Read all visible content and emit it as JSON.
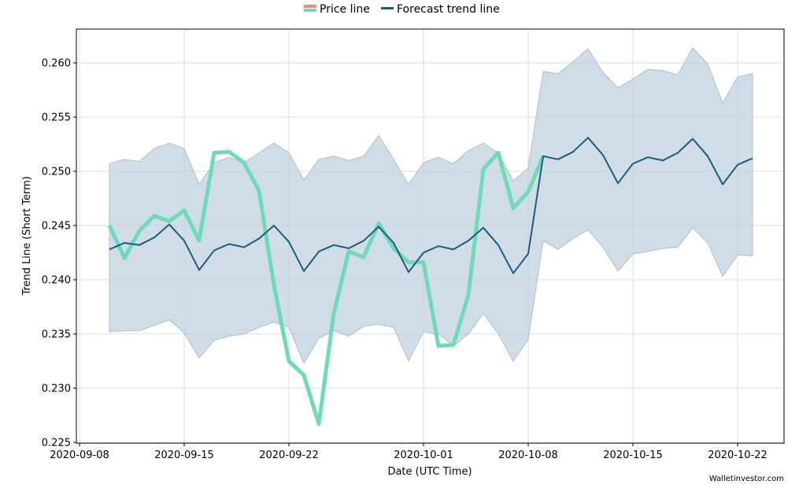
{
  "chart_data": {
    "type": "line",
    "xlabel": "Date (UTC Time)",
    "ylabel": "Trend Line (Short Term)",
    "xlim": [
      "2020-09-08",
      "2020-10-24"
    ],
    "ylim": [
      0.225,
      0.263
    ],
    "grid": true,
    "legend_position": "top-center",
    "x_ticks": [
      "2020-09-08",
      "2020-09-15",
      "2020-09-22",
      "2020-10-01",
      "2020-10-08",
      "2020-10-15",
      "2020-10-22"
    ],
    "y_ticks": [
      "0.225",
      "0.230",
      "0.235",
      "0.240",
      "0.245",
      "0.250",
      "0.255",
      "0.260"
    ],
    "price_line": {
      "name": "Price line",
      "color": "#6ddbb9",
      "legend_color": "#f08a78",
      "x": [
        "2020-09-10",
        "2020-09-11",
        "2020-09-12",
        "2020-09-13",
        "2020-09-14",
        "2020-09-15",
        "2020-09-16",
        "2020-09-17",
        "2020-09-18",
        "2020-09-19",
        "2020-09-20",
        "2020-09-21",
        "2020-09-22",
        "2020-09-23",
        "2020-09-24",
        "2020-09-25",
        "2020-09-26",
        "2020-09-27",
        "2020-09-28",
        "2020-09-29",
        "2020-09-30",
        "2020-10-01",
        "2020-10-02",
        "2020-10-03",
        "2020-10-04",
        "2020-10-05",
        "2020-10-06",
        "2020-10-07",
        "2020-10-08",
        "2020-10-09"
      ],
      "y": [
        0.245,
        0.242,
        0.2445,
        0.2459,
        0.2454,
        0.2464,
        0.2436,
        0.2517,
        0.2518,
        0.2508,
        0.2482,
        0.2395,
        0.2325,
        0.2312,
        0.2267,
        0.2369,
        0.2426,
        0.2421,
        0.2452,
        0.2429,
        0.2416,
        0.2416,
        0.2339,
        0.234,
        0.2386,
        0.2502,
        0.2517,
        0.2466,
        0.2481,
        0.2514
      ]
    },
    "forecast_line": {
      "name": "Forecast trend line",
      "color": "#1a5c80",
      "band_color": "#bccfdb",
      "x": [
        "2020-09-10",
        "2020-09-11",
        "2020-09-12",
        "2020-09-13",
        "2020-09-14",
        "2020-09-15",
        "2020-09-16",
        "2020-09-17",
        "2020-09-18",
        "2020-09-19",
        "2020-09-20",
        "2020-09-21",
        "2020-09-22",
        "2020-09-23",
        "2020-09-24",
        "2020-09-25",
        "2020-09-26",
        "2020-09-27",
        "2020-09-28",
        "2020-09-29",
        "2020-09-30",
        "2020-10-01",
        "2020-10-02",
        "2020-10-03",
        "2020-10-04",
        "2020-10-05",
        "2020-10-06",
        "2020-10-07",
        "2020-10-08",
        "2020-10-09",
        "2020-10-10",
        "2020-10-11",
        "2020-10-12",
        "2020-10-13",
        "2020-10-14",
        "2020-10-15",
        "2020-10-16",
        "2020-10-17",
        "2020-10-18",
        "2020-10-19",
        "2020-10-20",
        "2020-10-21",
        "2020-10-22",
        "2020-10-23"
      ],
      "y": [
        0.2428,
        0.2434,
        0.2432,
        0.2439,
        0.2451,
        0.2436,
        0.2409,
        0.2427,
        0.2433,
        0.243,
        0.2438,
        0.245,
        0.2435,
        0.2408,
        0.2426,
        0.2432,
        0.2429,
        0.2436,
        0.2449,
        0.2434,
        0.2407,
        0.2425,
        0.2431,
        0.2428,
        0.2436,
        0.2448,
        0.2432,
        0.2406,
        0.2424,
        0.2514,
        0.2511,
        0.2518,
        0.2531,
        0.2515,
        0.2489,
        0.2507,
        0.2513,
        0.251,
        0.2517,
        0.253,
        0.2514,
        0.2488,
        0.2506,
        0.2512
      ],
      "upper": [
        0.2507,
        0.2511,
        0.2509,
        0.2521,
        0.2526,
        0.2521,
        0.2488,
        0.2508,
        0.2513,
        0.2508,
        0.2517,
        0.2526,
        0.2517,
        0.2492,
        0.2511,
        0.2514,
        0.251,
        0.2514,
        0.2533,
        0.2511,
        0.2488,
        0.2508,
        0.2513,
        0.2507,
        0.2519,
        0.2526,
        0.2517,
        0.2491,
        0.2503,
        0.2592,
        0.259,
        0.2601,
        0.2613,
        0.2591,
        0.2577,
        0.2585,
        0.2594,
        0.2593,
        0.2589,
        0.2614,
        0.2599,
        0.2563,
        0.2587,
        0.259
      ],
      "lower": [
        0.2352,
        0.2353,
        0.2353,
        0.2358,
        0.2363,
        0.2351,
        0.2328,
        0.2344,
        0.2348,
        0.235,
        0.2356,
        0.2361,
        0.2356,
        0.2323,
        0.2346,
        0.2353,
        0.2348,
        0.2357,
        0.2359,
        0.2356,
        0.2325,
        0.2352,
        0.235,
        0.2339,
        0.235,
        0.2369,
        0.235,
        0.2325,
        0.2345,
        0.2436,
        0.2428,
        0.2438,
        0.2446,
        0.243,
        0.2408,
        0.2424,
        0.2426,
        0.2429,
        0.243,
        0.2448,
        0.2434,
        0.2403,
        0.2423,
        0.2422
      ]
    }
  },
  "watermark": "Walletinvestor.com"
}
